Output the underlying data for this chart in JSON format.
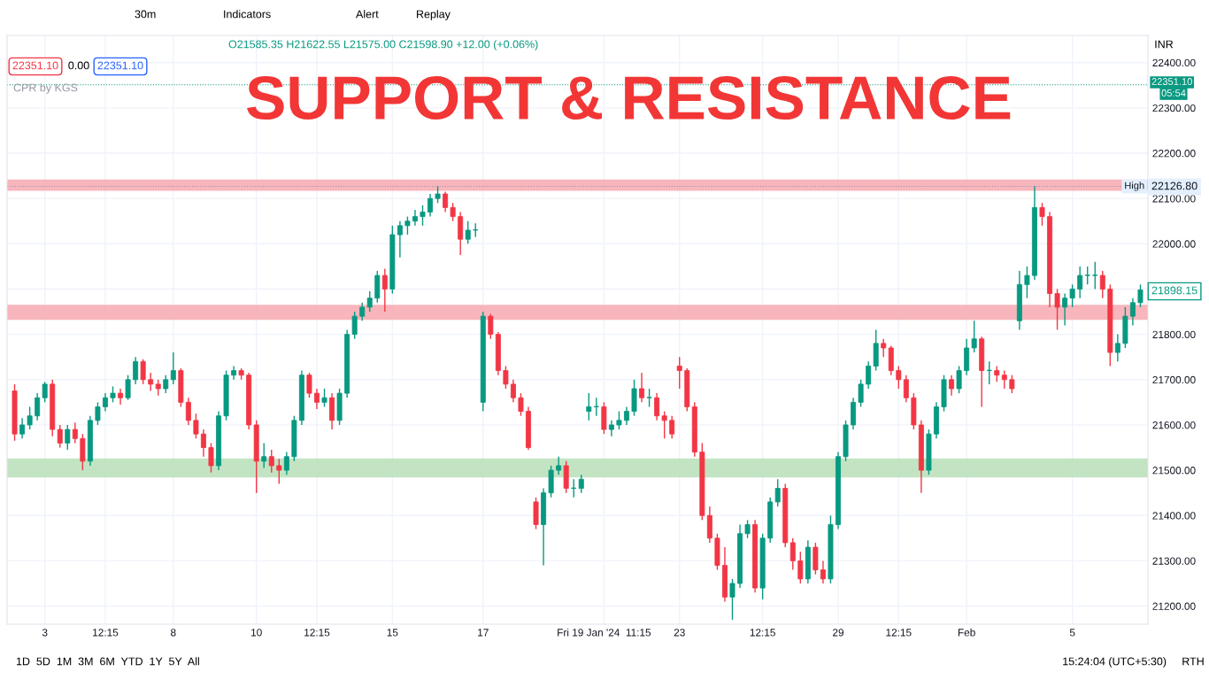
{
  "chart_data": {
    "type": "candlestick",
    "title": "SUPPORT & RESISTANCE",
    "categories": [
      null,
      null,
      null,
      null,
      "3",
      null,
      null,
      null,
      null,
      null,
      null,
      null,
      "12:15",
      null,
      null,
      null,
      null,
      null,
      null,
      null,
      null,
      "8",
      null,
      null,
      null,
      null,
      null,
      null,
      null,
      null,
      null,
      null,
      "10",
      null,
      null,
      null,
      null,
      null,
      null,
      null,
      "12:15",
      null,
      null,
      null,
      null,
      null,
      null,
      null,
      null,
      null,
      "15",
      null,
      null,
      null,
      null,
      null,
      null,
      null,
      null,
      null,
      null,
      null,
      "17",
      null,
      null,
      null,
      null,
      null,
      null,
      null,
      null,
      null,
      null,
      null,
      null,
      null,
      null,
      null,
      "Fri 19 Jan '24  11:15",
      null,
      null,
      null,
      null,
      null,
      null,
      null,
      null,
      null,
      "23",
      null,
      null,
      null,
      null,
      null,
      null,
      null,
      null,
      null,
      null,
      "12:15",
      null,
      null,
      null,
      null,
      null,
      null,
      null,
      null,
      null,
      "29",
      null,
      null,
      null,
      null,
      null,
      null,
      null,
      "12:15",
      null,
      null,
      null,
      null,
      null,
      null,
      null,
      null,
      "Feb",
      null,
      null,
      null,
      null,
      null,
      null,
      null,
      null,
      null,
      null,
      null,
      null,
      null,
      "5",
      null,
      null,
      null,
      null,
      null,
      null,
      null,
      null,
      null
    ],
    "ohlc": [
      [
        21675,
        21690,
        21565,
        21580
      ],
      [
        21580,
        21615,
        21570,
        21600
      ],
      [
        21600,
        21640,
        21590,
        21620
      ],
      [
        21620,
        21670,
        21610,
        21660
      ],
      [
        21660,
        21695,
        21650,
        21690
      ],
      [
        21690,
        21700,
        21575,
        21590
      ],
      [
        21590,
        21600,
        21550,
        21560
      ],
      [
        21560,
        21600,
        21545,
        21590
      ],
      [
        21590,
        21605,
        21560,
        21570
      ],
      [
        21570,
        21580,
        21500,
        21520
      ],
      [
        21520,
        21620,
        21510,
        21610
      ],
      [
        21610,
        21650,
        21600,
        21640
      ],
      [
        21640,
        21670,
        21630,
        21660
      ],
      [
        21660,
        21685,
        21650,
        21670
      ],
      [
        21670,
        21680,
        21645,
        21660
      ],
      [
        21660,
        21710,
        21655,
        21700
      ],
      [
        21700,
        21750,
        21690,
        21740
      ],
      [
        21740,
        21745,
        21690,
        21700
      ],
      [
        21700,
        21715,
        21675,
        21690
      ],
      [
        21690,
        21700,
        21665,
        21680
      ],
      [
        21680,
        21710,
        21670,
        21700
      ],
      [
        21700,
        21760,
        21690,
        21720
      ],
      [
        21720,
        21725,
        21640,
        21650
      ],
      [
        21650,
        21660,
        21600,
        21610
      ],
      [
        21610,
        21625,
        21570,
        21580
      ],
      [
        21580,
        21590,
        21530,
        21550
      ],
      [
        21550,
        21560,
        21495,
        21510
      ],
      [
        21510,
        21630,
        21500,
        21620
      ],
      [
        21620,
        21720,
        21610,
        21710
      ],
      [
        21710,
        21730,
        21700,
        21720
      ],
      [
        21720,
        21725,
        21700,
        21710
      ],
      [
        21710,
        21715,
        21590,
        21600
      ],
      [
        21600,
        21610,
        21450,
        21520
      ],
      [
        21520,
        21560,
        21505,
        21530
      ],
      [
        21530,
        21545,
        21495,
        21510
      ],
      [
        21510,
        21525,
        21470,
        21500
      ],
      [
        21500,
        21540,
        21490,
        21530
      ],
      [
        21530,
        21620,
        21520,
        21610
      ],
      [
        21610,
        21720,
        21600,
        21710
      ],
      [
        21710,
        21715,
        21660,
        21670
      ],
      [
        21670,
        21680,
        21635,
        21650
      ],
      [
        21650,
        21680,
        21640,
        21660
      ],
      [
        21660,
        21670,
        21590,
        21610
      ],
      [
        21610,
        21680,
        21600,
        21670
      ],
      [
        21670,
        21810,
        21660,
        21800
      ],
      [
        21800,
        21850,
        21790,
        21840
      ],
      [
        21840,
        21870,
        21830,
        21860
      ],
      [
        21860,
        21895,
        21850,
        21880
      ],
      [
        21880,
        21940,
        21870,
        21930
      ],
      [
        21930,
        21945,
        21850,
        21900
      ],
      [
        21900,
        22040,
        21890,
        22020
      ],
      [
        22020,
        22050,
        21970,
        22040
      ],
      [
        22040,
        22060,
        22020,
        22050
      ],
      [
        22050,
        22075,
        22040,
        22060
      ],
      [
        22060,
        22085,
        22040,
        22070
      ],
      [
        22070,
        22110,
        22060,
        22100
      ],
      [
        22100,
        22127,
        22090,
        22110
      ],
      [
        22110,
        22115,
        22070,
        22080
      ],
      [
        22080,
        22090,
        22050,
        22060
      ],
      [
        22060,
        22070,
        21975,
        22010
      ],
      [
        22010,
        22050,
        22000,
        22030
      ],
      [
        22030,
        22045,
        22015,
        22030
      ],
      [
        21650,
        21850,
        21630,
        21840
      ],
      [
        21840,
        21845,
        21790,
        21800
      ],
      [
        21800,
        21805,
        21710,
        21720
      ],
      [
        21720,
        21730,
        21680,
        21690
      ],
      [
        21690,
        21700,
        21650,
        21660
      ],
      [
        21660,
        21670,
        21620,
        21630
      ],
      [
        21630,
        21640,
        21545,
        21550
      ],
      [
        21430,
        21440,
        21370,
        21380
      ],
      [
        21380,
        21460,
        21290,
        21450
      ],
      [
        21450,
        21510,
        21440,
        21500
      ],
      [
        21500,
        21530,
        21490,
        21510
      ],
      [
        21510,
        21520,
        21450,
        21460
      ],
      [
        21460,
        21480,
        21440,
        21460
      ],
      [
        21460,
        21490,
        21450,
        21480
      ],
      [
        21630,
        21670,
        21610,
        21640
      ],
      [
        21640,
        21660,
        21620,
        21640
      ],
      [
        21640,
        21650,
        21580,
        21590
      ],
      [
        21590,
        21610,
        21575,
        21600
      ],
      [
        21600,
        21630,
        21590,
        21610
      ],
      [
        21610,
        21640,
        21600,
        21630
      ],
      [
        21630,
        21700,
        21620,
        21680
      ],
      [
        21680,
        21715,
        21650,
        21660
      ],
      [
        21660,
        21680,
        21640,
        21660
      ],
      [
        21660,
        21670,
        21610,
        21620
      ],
      [
        21620,
        21630,
        21570,
        21610
      ],
      [
        21610,
        21620,
        21570,
        21580
      ],
      [
        21730,
        21750,
        21680,
        21720
      ],
      [
        21720,
        21725,
        21630,
        21640
      ],
      [
        21640,
        21650,
        21530,
        21540
      ],
      [
        21540,
        21560,
        21390,
        21400
      ],
      [
        21400,
        21420,
        21340,
        21350
      ],
      [
        21350,
        21360,
        21280,
        21290
      ],
      [
        21290,
        21330,
        21210,
        21220
      ],
      [
        21220,
        21260,
        21170,
        21250
      ],
      [
        21250,
        21380,
        21240,
        21360
      ],
      [
        21360,
        21390,
        21350,
        21380
      ],
      [
        21380,
        21390,
        21230,
        21240
      ],
      [
        21240,
        21360,
        21215,
        21350
      ],
      [
        21350,
        21440,
        21340,
        21430
      ],
      [
        21430,
        21480,
        21420,
        21460
      ],
      [
        21460,
        21470,
        21330,
        21340
      ],
      [
        21340,
        21350,
        21280,
        21300
      ],
      [
        21300,
        21320,
        21250,
        21260
      ],
      [
        21260,
        21345,
        21250,
        21330
      ],
      [
        21330,
        21340,
        21270,
        21280
      ],
      [
        21280,
        21300,
        21250,
        21260
      ],
      [
        21260,
        21400,
        21250,
        21380
      ],
      [
        21380,
        21540,
        21370,
        21530
      ],
      [
        21530,
        21610,
        21520,
        21600
      ],
      [
        21600,
        21660,
        21590,
        21650
      ],
      [
        21650,
        21700,
        21640,
        21690
      ],
      [
        21690,
        21740,
        21680,
        21730
      ],
      [
        21730,
        21810,
        21720,
        21780
      ],
      [
        21780,
        21790,
        21750,
        21770
      ],
      [
        21770,
        21775,
        21710,
        21720
      ],
      [
        21720,
        21730,
        21680,
        21700
      ],
      [
        21700,
        21710,
        21650,
        21660
      ],
      [
        21660,
        21670,
        21590,
        21600
      ],
      [
        21600,
        21610,
        21450,
        21500
      ],
      [
        21500,
        21590,
        21490,
        21580
      ],
      [
        21580,
        21650,
        21570,
        21640
      ],
      [
        21640,
        21710,
        21630,
        21700
      ],
      [
        21700,
        21710,
        21665,
        21680
      ],
      [
        21680,
        21730,
        21670,
        21720
      ],
      [
        21720,
        21790,
        21710,
        21770
      ],
      [
        21770,
        21830,
        21760,
        21790
      ],
      [
        21790,
        21795,
        21640,
        21720
      ],
      [
        21720,
        21740,
        21690,
        21720
      ],
      [
        21720,
        21730,
        21695,
        21710
      ],
      [
        21710,
        21720,
        21680,
        21700
      ],
      [
        21700,
        21710,
        21670,
        21680
      ],
      [
        21830,
        21940,
        21810,
        21910
      ],
      [
        21910,
        21950,
        21880,
        21930
      ],
      [
        21930,
        22127,
        21920,
        22080
      ],
      [
        22080,
        22090,
        22040,
        22060
      ],
      [
        22060,
        22070,
        21860,
        21890
      ],
      [
        21890,
        21900,
        21810,
        21860
      ],
      [
        21860,
        21890,
        21820,
        21880
      ],
      [
        21880,
        21910,
        21860,
        21900
      ],
      [
        21900,
        21950,
        21880,
        21930
      ],
      [
        21930,
        21950,
        21910,
        21930
      ],
      [
        21930,
        21960,
        21900,
        21930
      ],
      [
        21930,
        21940,
        21880,
        21900
      ],
      [
        21900,
        21910,
        21730,
        21760
      ],
      [
        21760,
        21800,
        21740,
        21780
      ],
      [
        21780,
        21860,
        21770,
        21840
      ],
      [
        21840,
        21880,
        21820,
        21870
      ],
      [
        21870,
        21910,
        21860,
        21898.15
      ]
    ],
    "colors": [
      "#f23645",
      "#089981",
      "#089981",
      "#089981",
      "#089981",
      "#f23645",
      "#f23645",
      "#089981",
      "#f23645",
      "#f23645",
      "#089981",
      "#089981",
      "#089981",
      "#089981",
      "#f23645",
      "#089981",
      "#089981",
      "#f23645",
      "#f23645",
      "#f23645",
      "#089981",
      "#089981",
      "#f23645",
      "#f23645",
      "#f23645",
      "#f23645",
      "#f23645",
      "#089981",
      "#089981",
      "#089981",
      "#f23645",
      "#f23645",
      "#f23645",
      "#089981",
      "#f23645",
      "#f23645",
      "#089981",
      "#089981",
      "#089981",
      "#f23645",
      "#f23645",
      "#089981",
      "#f23645",
      "#089981",
      "#089981",
      "#089981",
      "#089981",
      "#089981",
      "#089981",
      "#f23645",
      "#089981",
      "#089981",
      "#089981",
      "#089981",
      "#089981",
      "#089981",
      "#089981",
      "#f23645",
      "#f23645",
      "#f23645",
      "#089981",
      "#089981",
      "#089981",
      "#f23645",
      "#f23645",
      "#f23645",
      "#f23645",
      "#f23645",
      "#f23645",
      "#f23645",
      "#089981",
      "#089981",
      "#089981",
      "#f23645",
      "#089981",
      "#089981",
      "#089981",
      "#089981",
      "#f23645",
      "#089981",
      "#089981",
      "#089981",
      "#089981",
      "#f23645",
      "#089981",
      "#f23645",
      "#f23645",
      "#f23645",
      "#f23645",
      "#f23645",
      "#f23645",
      "#f23645",
      "#f23645",
      "#f23645",
      "#f23645",
      "#089981",
      "#089981",
      "#089981",
      "#f23645",
      "#089981",
      "#089981",
      "#089981",
      "#f23645",
      "#f23645",
      "#f23645",
      "#089981",
      "#f23645",
      "#f23645",
      "#089981",
      "#089981",
      "#089981",
      "#089981",
      "#089981",
      "#089981",
      "#089981",
      "#f23645",
      "#f23645",
      "#f23645",
      "#f23645",
      "#f23645",
      "#f23645",
      "#089981",
      "#089981",
      "#089981",
      "#f23645",
      "#089981",
      "#089981",
      "#089981",
      "#f23645",
      "#089981",
      "#f23645",
      "#f23645",
      "#f23645",
      "#089981",
      "#089981",
      "#089981",
      "#f23645",
      "#f23645",
      "#f23645",
      "#089981",
      "#089981",
      "#089981",
      "#089981",
      "#089981",
      "#f23645",
      "#f23645",
      "#089981",
      "#089981",
      "#089981",
      "#089981"
    ],
    "ylim": [
      21160,
      22460
    ],
    "yticks": [
      {
        "value": 21200,
        "label": "21200.00"
      },
      {
        "value": 21300,
        "label": "21300.00"
      },
      {
        "value": 21400,
        "label": "21400.00"
      },
      {
        "value": 21500,
        "label": "21500.00"
      },
      {
        "value": 21600,
        "label": "21600.00"
      },
      {
        "value": 21700,
        "label": "21700.00"
      },
      {
        "value": 21800,
        "label": "21800.00"
      },
      {
        "value": 21900,
        "label": null
      },
      {
        "value": 22000,
        "label": "22000.00"
      },
      {
        "value": 22100,
        "label": "22100.00"
      },
      {
        "value": 22200,
        "label": "22200.00"
      },
      {
        "value": 22300,
        "label": "22300.00"
      },
      {
        "value": 22400,
        "label": "22400.00"
      }
    ],
    "bands": [
      {
        "axis": "y",
        "from": 22117,
        "to": 22142,
        "color": "#f7a8b0"
      },
      {
        "axis": "y",
        "from": 21832,
        "to": 21865,
        "color": "#f7a8b0"
      },
      {
        "axis": "y",
        "from": 21484,
        "to": 21526,
        "color": "#b9dfb8"
      }
    ],
    "ref_lines": [
      {
        "axis": "y",
        "value": 22351.1,
        "color": "#089981",
        "line_style": "dotted"
      },
      {
        "axis": "y",
        "value": 22126.8,
        "label": "High",
        "color": "#9598a1",
        "line_style": "dotted"
      }
    ],
    "annotations": [
      "30m",
      "Indicators",
      "Alert",
      "Replay",
      "O21585.35 H21622.55 L21575.00 C21598.90 +12.00 (+0.06%)",
      "22351.10",
      "0.00",
      "22351.10",
      "CPR by KGS",
      "INR",
      "1D  5D  1M  3M  6M  YTD  1Y  5Y  All",
      "15:24:04 (UTC+5:30)",
      "RTH",
      "05:54",
      "22351.10",
      "22126.80",
      "21898.15"
    ],
    "grid": true,
    "legend": false
  }
}
